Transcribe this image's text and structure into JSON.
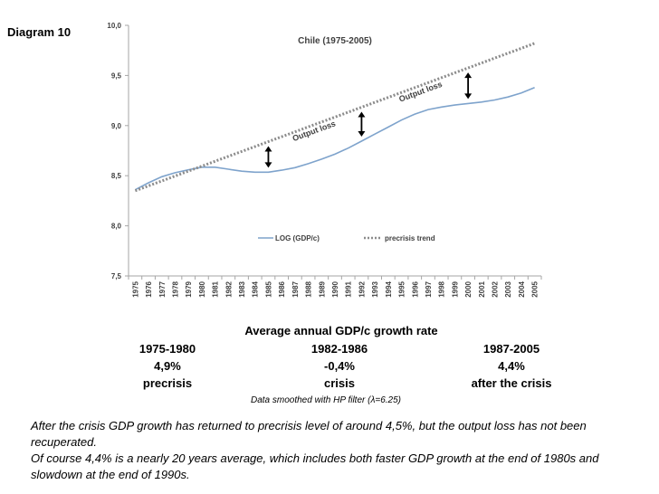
{
  "diagram_label": "Diagram 10",
  "chart_data": {
    "type": "line",
    "title": "Chile (1975-2005)",
    "x": [
      1975,
      1976,
      1977,
      1978,
      1979,
      1980,
      1981,
      1982,
      1983,
      1984,
      1985,
      1986,
      1987,
      1988,
      1989,
      1990,
      1991,
      1992,
      1993,
      1994,
      1995,
      1996,
      1997,
      1998,
      1999,
      2000,
      2001,
      2002,
      2003,
      2004,
      2005
    ],
    "series": [
      {
        "name": "LOG (GDP/c)",
        "style": "solid",
        "color": "#7ea3cc",
        "values": [
          8.36,
          8.43,
          8.49,
          8.53,
          8.56,
          8.585,
          8.585,
          8.565,
          8.545,
          8.535,
          8.535,
          8.555,
          8.58,
          8.62,
          8.665,
          8.715,
          8.775,
          8.845,
          8.915,
          8.985,
          9.055,
          9.115,
          9.16,
          9.185,
          9.205,
          9.22,
          9.235,
          9.255,
          9.285,
          9.325,
          9.38
        ]
      },
      {
        "name": "precrisis trend",
        "style": "dotted",
        "color": "#8c8c8c",
        "values": [
          8.35,
          8.399,
          8.448,
          8.497,
          8.546,
          8.595,
          8.644,
          8.693,
          8.742,
          8.791,
          8.84,
          8.889,
          8.938,
          8.987,
          9.036,
          9.085,
          9.134,
          9.183,
          9.232,
          9.281,
          9.33,
          9.379,
          9.428,
          9.477,
          9.526,
          9.575,
          9.624,
          9.673,
          9.722,
          9.771,
          9.82
        ]
      }
    ],
    "y_ticks": [
      "7,5",
      "8,0",
      "8,5",
      "9,0",
      "9,5",
      "10,0"
    ],
    "y_tick_values": [
      7.5,
      8.0,
      8.5,
      9.0,
      9.5,
      10.0
    ],
    "ylim": [
      7.5,
      10.0
    ],
    "xlabel": "",
    "ylabel": "",
    "annotations": [
      "Output loss",
      "Output loss"
    ],
    "output_loss_years": [
      1985,
      1992,
      2000
    ],
    "legend": [
      "LOG (GDP/c)",
      "precrisis trend"
    ],
    "legend_position": "bottom-right inside"
  },
  "growth": {
    "header": "Average annual GDP/c growth rate",
    "periods": [
      {
        "years": "1975-1980",
        "rate": "4,9%",
        "note": "precrisis"
      },
      {
        "years": "1982-1986",
        "rate": "-0,4%",
        "note": "crisis"
      },
      {
        "years": "1987-2005",
        "rate": "4,4%",
        "note": "after the crisis"
      }
    ],
    "smoothing_note": "Data smoothed with HP filter (λ=6.25)"
  },
  "footer": {
    "para1": "After the crisis GDP growth has returned to precrisis level of around 4,5%, but the output loss has not been recuperated.",
    "para2": "Of course 4,4% is a nearly 20 years average, which includes both faster GDP growth at the end of 1980s and slowdown at the end of 1990s."
  }
}
